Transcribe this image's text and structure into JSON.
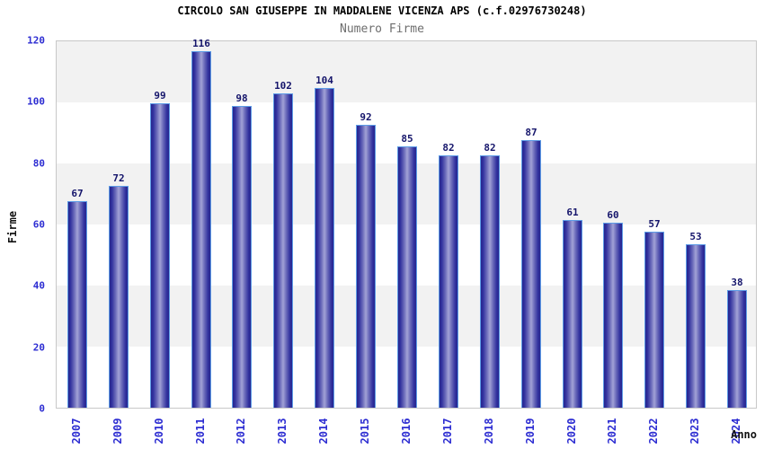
{
  "header": {
    "title": "CIRCOLO SAN GIUSEPPE IN MADDALENE VICENZA APS (c.f.02976730248)",
    "subtitle": "Numero Firme"
  },
  "chart_data": {
    "type": "bar",
    "title": "CIRCOLO SAN GIUSEPPE IN MADDALENE VICENZA APS (c.f.02976730248)",
    "subtitle": "Numero Firme",
    "categories": [
      "2007",
      "2009",
      "2010",
      "2011",
      "2012",
      "2013",
      "2014",
      "2015",
      "2016",
      "2017",
      "2018",
      "2019",
      "2020",
      "2021",
      "2022",
      "2023",
      "2024"
    ],
    "values": [
      67,
      72,
      99,
      116,
      98,
      102,
      104,
      92,
      85,
      82,
      82,
      87,
      61,
      60,
      57,
      53,
      38
    ],
    "xlabel": "Anno",
    "ylabel": "Firme",
    "ylim": [
      0,
      120
    ],
    "ytick_step": 20,
    "yticks": [
      0,
      20,
      40,
      60,
      80,
      100,
      120
    ],
    "grid": "alternating-horizontal-bands",
    "legend_position": "none",
    "bar_value_labels_shown": true
  },
  "colors": {
    "title_color": "#000000",
    "subtitle_color": "#6e6e6e",
    "tick_color": "#2d2dd2",
    "value_color": "#15156b",
    "axis_title_color": "#111111",
    "bar_edge": "#26268e",
    "bar_center": "#a2a2d6",
    "bar_border": "#5d9ce6",
    "band_gray": "#f2f2f2",
    "band_white": "#ffffff",
    "plot_border": "#c8c8c8"
  }
}
